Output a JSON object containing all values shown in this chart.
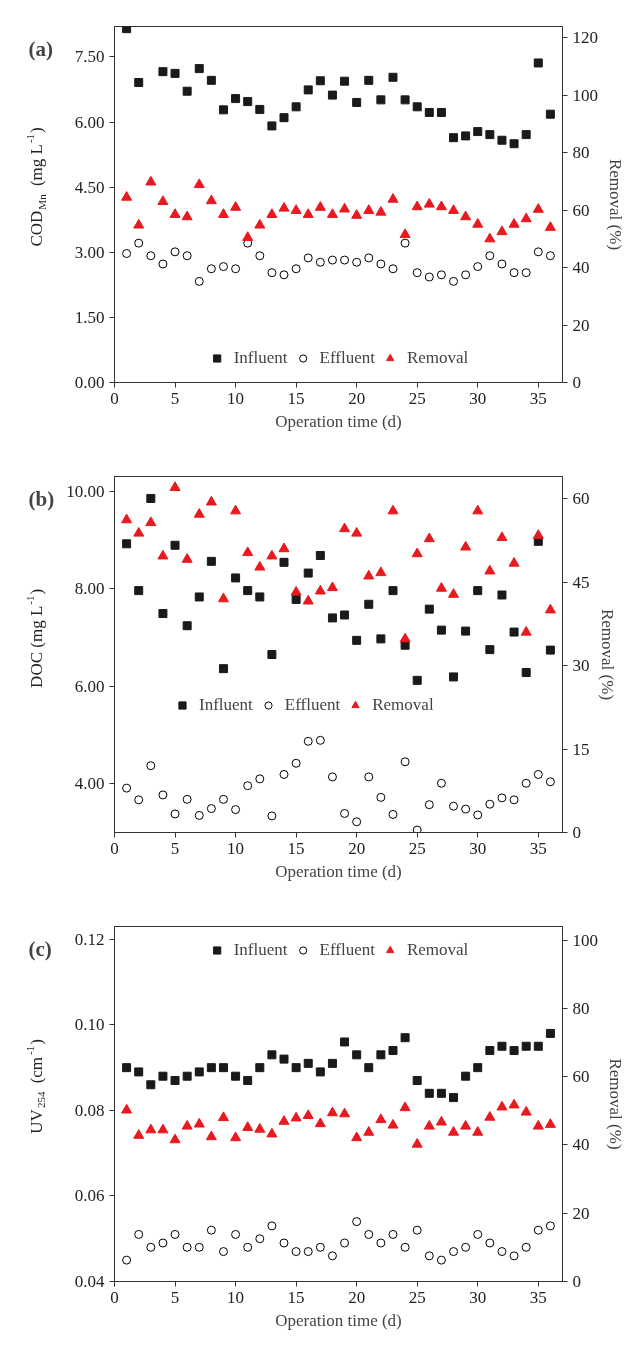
{
  "chart_data": [
    {
      "type": "scatter",
      "title": "(a)",
      "xlabel": "Operation time (d)",
      "ylabel": "COD$_{Mn}$ (mg L$^{-1}$)",
      "y2label": "Removal (%)",
      "x": [
        1,
        2,
        3,
        4,
        5,
        6,
        7,
        8,
        9,
        10,
        11,
        12,
        13,
        14,
        15,
        16,
        17,
        18,
        19,
        20,
        21,
        22,
        23,
        24,
        25,
        26,
        27,
        28,
        29,
        30,
        31,
        32,
        33,
        34,
        35,
        36
      ],
      "xlim": [
        0,
        37
      ],
      "xticks": [
        0,
        5,
        10,
        15,
        20,
        25,
        30,
        35
      ],
      "ylim": [
        0,
        8.2
      ],
      "yticks": [
        {
          "value": 0,
          "label": "0.00"
        },
        {
          "value": 1.5,
          "label": "1.50"
        },
        {
          "value": 3,
          "label": "3.00"
        },
        {
          "value": 4.5,
          "label": "4.50"
        },
        {
          "value": 6,
          "label": "6.00"
        },
        {
          "value": 7.5,
          "label": "7.50"
        }
      ],
      "y2lim": [
        0,
        124
      ],
      "y2ticks": [
        0,
        20,
        40,
        60,
        80,
        100,
        120
      ],
      "grid": false,
      "legend": "bottom",
      "series": [
        {
          "name": "Influent",
          "color": "#1a1a1a",
          "marker": "square",
          "values": [
            8.15,
            6.91,
            null,
            7.16,
            7.12,
            6.71,
            7.23,
            6.96,
            6.28,
            6.54,
            6.47,
            6.29,
            5.91,
            6.1,
            6.35,
            6.74,
            6.95,
            6.62,
            6.94,
            6.45,
            6.96,
            6.51,
            7.03,
            6.51,
            6.35,
            6.22,
            6.22,
            5.64,
            5.68,
            5.78,
            5.71,
            5.58,
            5.5,
            5.71,
            7.36,
            6.18
          ]
        },
        {
          "name": "Effluent",
          "color": "#000000",
          "marker": "circle",
          "values": [
            2.97,
            3.21,
            2.92,
            2.73,
            3.01,
            2.92,
            2.33,
            2.62,
            2.67,
            2.62,
            3.21,
            2.92,
            2.53,
            2.48,
            2.62,
            2.87,
            2.77,
            2.82,
            2.82,
            2.77,
            2.87,
            2.73,
            2.62,
            3.21,
            2.53,
            2.43,
            2.48,
            2.33,
            2.48,
            2.67,
            2.92,
            2.73,
            2.53,
            2.53,
            3.01,
            2.92
          ]
        },
        {
          "name": "Removal",
          "color": "#e8191f",
          "marker": "triangle",
          "axis": "y2",
          "values": [
            64.5,
            54.8,
            69.8,
            63.0,
            58.5,
            57.7,
            68.9,
            63.3,
            58.5,
            61.0,
            50.5,
            54.8,
            58.5,
            60.7,
            59.9,
            58.5,
            61.0,
            58.5,
            60.4,
            58.2,
            59.9,
            59.3,
            63.8,
            51.5,
            61.2,
            62.1,
            61.2,
            59.9,
            57.7,
            55.1,
            50.0,
            52.5,
            55.1,
            57.0,
            60.3,
            54.0
          ]
        }
      ]
    },
    {
      "type": "scatter",
      "title": "(b)",
      "xlabel": "Operation time (d)",
      "ylabel": "DOC (mg L$^{-1}$)",
      "y2label": "Removal (%)",
      "x": [
        1,
        2,
        3,
        4,
        5,
        6,
        7,
        8,
        9,
        10,
        11,
        12,
        13,
        14,
        15,
        16,
        17,
        18,
        19,
        20,
        21,
        22,
        23,
        24,
        25,
        26,
        27,
        28,
        29,
        30,
        31,
        32,
        33,
        34,
        35,
        36
      ],
      "xlim": [
        0,
        37
      ],
      "xticks": [
        0,
        5,
        10,
        15,
        20,
        25,
        30,
        35
      ],
      "ylim": [
        3,
        10.3
      ],
      "yticks": [
        {
          "value": 4,
          "label": "4.00"
        },
        {
          "value": 6,
          "label": "6.00"
        },
        {
          "value": 8,
          "label": "8.00"
        },
        {
          "value": 10,
          "label": "10.00"
        }
      ],
      "y2lim": [
        0,
        64
      ],
      "y2ticks": [
        0,
        15,
        30,
        45,
        60
      ],
      "grid": false,
      "legend": "center",
      "series": [
        {
          "name": "Influent",
          "color": "#1a1a1a",
          "marker": "square",
          "values": [
            8.92,
            7.96,
            9.85,
            7.49,
            8.89,
            7.24,
            7.83,
            8.56,
            6.36,
            8.22,
            7.96,
            7.83,
            6.65,
            8.54,
            7.78,
            8.32,
            8.68,
            7.4,
            7.46,
            6.94,
            7.68,
            6.97,
            7.96,
            6.84,
            6.12,
            7.58,
            7.15,
            6.19,
            7.13,
            7.96,
            6.75,
            7.87,
            7.11,
            6.28,
            8.97,
            6.74
          ]
        },
        {
          "name": "Effluent",
          "color": "#000000",
          "marker": "circle",
          "values": [
            3.91,
            3.67,
            4.37,
            3.77,
            3.38,
            3.68,
            3.35,
            3.49,
            3.68,
            3.47,
            3.96,
            4.1,
            3.34,
            4.19,
            4.42,
            4.87,
            4.89,
            4.14,
            3.39,
            3.22,
            4.14,
            3.72,
            3.37,
            4.45,
            3.05,
            3.57,
            4.01,
            3.54,
            3.48,
            3.36,
            3.58,
            3.71,
            3.67,
            4.01,
            4.19,
            4.04
          ]
        },
        {
          "name": "Removal",
          "color": "#e8191f",
          "marker": "triangle",
          "axis": "y2",
          "values": [
            56.2,
            53.8,
            55.7,
            49.7,
            62.0,
            49.1,
            57.2,
            59.4,
            42.0,
            57.8,
            50.3,
            47.7,
            49.7,
            51.0,
            43.2,
            41.6,
            43.4,
            44.0,
            54.6,
            53.8,
            46.1,
            46.7,
            57.8,
            34.8,
            50.1,
            52.8,
            43.9,
            42.8,
            51.3,
            57.8,
            47.0,
            53.0,
            48.4,
            36.0,
            53.4,
            40.0
          ]
        }
      ]
    },
    {
      "type": "scatter",
      "title": "(c)",
      "xlabel": "Operation time (d)",
      "ylabel": "UV$_{254}$ (cm$^{-1}$)",
      "y2label": "Removal (%)",
      "x": [
        1,
        2,
        3,
        4,
        5,
        6,
        7,
        8,
        9,
        10,
        11,
        12,
        13,
        14,
        15,
        16,
        17,
        18,
        19,
        20,
        21,
        22,
        23,
        24,
        25,
        26,
        27,
        28,
        29,
        30,
        31,
        32,
        33,
        34,
        35,
        36
      ],
      "xlim": [
        0,
        37
      ],
      "xticks": [
        0,
        5,
        10,
        15,
        20,
        25,
        30,
        35
      ],
      "ylim": [
        0.04,
        0.123
      ],
      "yticks": [
        {
          "value": 0.04,
          "label": "0.04"
        },
        {
          "value": 0.06,
          "label": "0.06"
        },
        {
          "value": 0.08,
          "label": "0.08"
        },
        {
          "value": 0.1,
          "label": "0.10"
        },
        {
          "value": 0.12,
          "label": "0.12"
        }
      ],
      "y2lim": [
        0,
        104
      ],
      "y2ticks": [
        0,
        20,
        40,
        60,
        80,
        100
      ],
      "grid": false,
      "legend": "top",
      "series": [
        {
          "name": "Influent",
          "color": "#1a1a1a",
          "marker": "square",
          "values": [
            0.09,
            0.089,
            0.086,
            0.088,
            0.087,
            0.088,
            0.089,
            0.09,
            0.09,
            0.088,
            0.087,
            0.09,
            0.093,
            0.092,
            0.09,
            0.091,
            0.089,
            0.091,
            0.096,
            0.093,
            0.09,
            0.093,
            0.094,
            0.097,
            0.087,
            0.084,
            0.084,
            0.083,
            0.088,
            0.09,
            0.094,
            0.095,
            0.094,
            0.095,
            0.095,
            0.098
          ]
        },
        {
          "name": "Effluent",
          "color": "#000000",
          "marker": "circle",
          "values": [
            0.045,
            0.051,
            0.048,
            0.049,
            0.051,
            0.048,
            0.048,
            0.052,
            0.047,
            0.051,
            0.048,
            0.05,
            0.053,
            0.049,
            0.047,
            0.047,
            0.048,
            0.046,
            0.049,
            0.054,
            0.051,
            0.049,
            0.051,
            0.048,
            0.052,
            0.046,
            0.045,
            0.047,
            0.048,
            0.051,
            0.049,
            0.047,
            0.046,
            0.048,
            0.052,
            0.053
          ]
        },
        {
          "name": "Removal",
          "color": "#e8191f",
          "marker": "triangle",
          "axis": "y2",
          "values": [
            50.2,
            42.8,
            44.4,
            44.4,
            41.5,
            45.5,
            46.1,
            42.4,
            48.0,
            42.1,
            45.1,
            44.6,
            43.2,
            46.9,
            47.9,
            48.6,
            46.2,
            49.4,
            49.1,
            42.1,
            43.7,
            47.4,
            45.8,
            50.9,
            40.2,
            45.5,
            46.7,
            43.7,
            45.5,
            43.7,
            48.1,
            51.1,
            51.7,
            49.6,
            45.5,
            46.0
          ]
        }
      ]
    }
  ]
}
